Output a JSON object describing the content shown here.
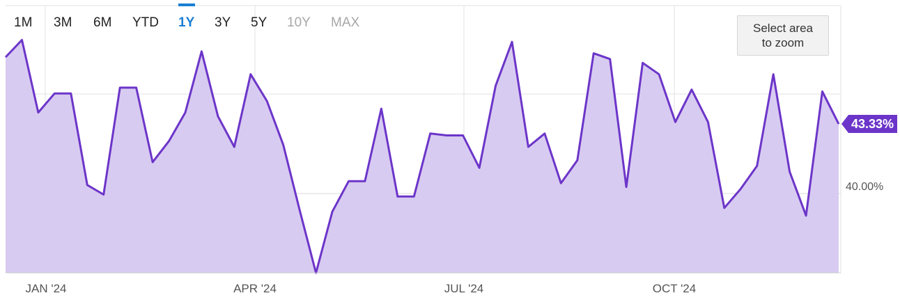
{
  "range_selector": {
    "buttons": [
      {
        "label": "1M",
        "state": "normal"
      },
      {
        "label": "3M",
        "state": "normal"
      },
      {
        "label": "6M",
        "state": "normal"
      },
      {
        "label": "YTD",
        "state": "normal"
      },
      {
        "label": "1Y",
        "state": "active"
      },
      {
        "label": "3Y",
        "state": "normal"
      },
      {
        "label": "5Y",
        "state": "normal"
      },
      {
        "label": "10Y",
        "state": "disabled"
      },
      {
        "label": "MAX",
        "state": "disabled"
      }
    ]
  },
  "zoom_hint": "Select area to zoom",
  "colors": {
    "line": "#6c35c9",
    "area": "#d8cbf1",
    "grid": "#e2e2e2",
    "label_bg": "#6c35c9",
    "active": "#1a7fd4"
  },
  "chart_data": {
    "type": "area",
    "x_ticks": [
      "JAN '24",
      "APR '24",
      "JUL '24",
      "OCT '24"
    ],
    "y_ticks": [
      "40.00%"
    ],
    "last_value_label": "43.33%",
    "ylim": [
      35.5,
      49.5
    ],
    "grid": true,
    "series": [
      {
        "values": [
          46.8,
          47.7,
          43.9,
          44.9,
          44.9,
          40.1,
          39.6,
          45.2,
          45.2,
          41.3,
          42.4,
          43.9,
          47.1,
          43.7,
          42.1,
          45.9,
          44.5,
          42.2,
          38.8,
          35.5,
          38.7,
          40.3,
          40.3,
          44.1,
          39.5,
          39.5,
          42.8,
          42.7,
          42.7,
          41.0,
          45.3,
          47.6,
          42.1,
          42.8,
          40.2,
          41.4,
          47.0,
          46.7,
          40.0,
          46.5,
          45.9,
          43.4,
          45.1,
          43.4,
          38.9,
          39.9,
          41.1,
          45.9,
          40.8,
          38.5,
          45.0,
          43.3
        ]
      }
    ]
  }
}
